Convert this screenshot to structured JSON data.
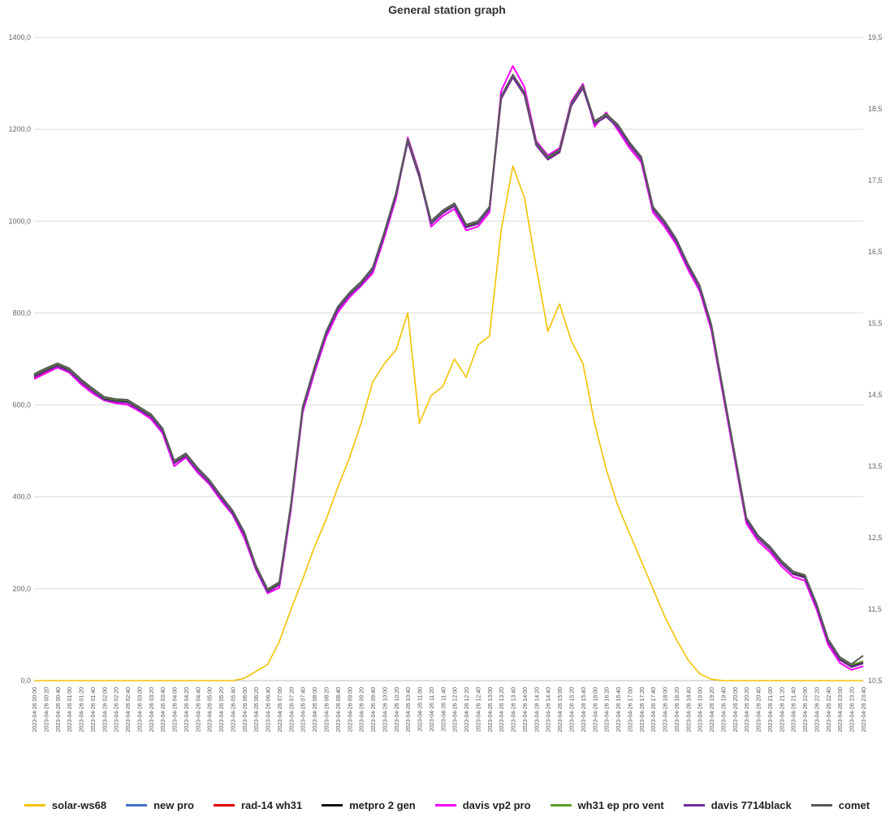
{
  "chart_data": {
    "type": "line",
    "title": "General station graph",
    "y_left": {
      "min": 0,
      "max": 1400,
      "ticks": [
        "0,0",
        "200,0",
        "400,0",
        "600,0",
        "800,0",
        "1000,0",
        "1200,0",
        "1400,0"
      ]
    },
    "y_right": {
      "min": 10.5,
      "max": 19.5,
      "ticks": [
        "10,5",
        "11,5",
        "12,5",
        "13,5",
        "14,5",
        "15,5",
        "16,5",
        "17,5",
        "18,5",
        "19,5"
      ]
    },
    "grid": true,
    "legend_position": "bottom",
    "x_labels": [
      "2023-04-26 00:00",
      "2023-04-26 00:20",
      "2023-04-26 00:40",
      "2023-04-26 01:00",
      "2023-04-26 01:20",
      "2023-04-26 01:40",
      "2023-04-26 02:00",
      "2023-04-26 02:20",
      "2023-04-26 02:40",
      "2023-04-26 03:00",
      "2023-04-26 03:20",
      "2023-04-26 03:40",
      "2023-04-26 04:00",
      "2023-04-26 04:20",
      "2023-04-26 04:40",
      "2023-04-26 05:00",
      "2023-04-26 05:20",
      "2023-04-26 05:40",
      "2023-04-26 06:00",
      "2023-04-26 06:20",
      "2023-04-26 06:40",
      "2023-04-26 07:00",
      "2023-04-26 07:20",
      "2023-04-26 07:40",
      "2023-04-26 08:00",
      "2023-04-26 08:20",
      "2023-04-26 08:40",
      "2023-04-26 09:00",
      "2023-04-26 09:20",
      "2023-04-26 09:40",
      "2023-04-26 10:00",
      "2023-04-26 10:20",
      "2023-04-26 10:40",
      "2023-04-26 11:00",
      "2023-04-26 11:20",
      "2023-04-26 11:40",
      "2023-04-26 12:00",
      "2023-04-26 12:20",
      "2023-04-26 12:40",
      "2023-04-26 13:00",
      "2023-04-26 13:20",
      "2023-04-26 13:40",
      "2023-04-26 14:00",
      "2023-04-26 14:20",
      "2023-04-26 14:40",
      "2023-04-26 15:00",
      "2023-04-26 15:20",
      "2023-04-26 15:40",
      "2023-04-26 16:00",
      "2023-04-26 16:20",
      "2023-04-26 16:40",
      "2023-04-26 17:00",
      "2023-04-26 17:20",
      "2023-04-26 17:40",
      "2023-04-26 18:00",
      "2023-04-26 18:20",
      "2023-04-26 18:40",
      "2023-04-26 19:00",
      "2023-04-26 19:20",
      "2023-04-26 19:40",
      "2023-04-26 20:00",
      "2023-04-26 20:20",
      "2023-04-26 20:40",
      "2023-04-26 21:00",
      "2023-04-26 21:20",
      "2023-04-26 21:40",
      "2023-04-26 22:00",
      "2023-04-26 22:20",
      "2023-04-26 22:40",
      "2023-04-26 23:00",
      "2023-04-26 23:20",
      "2023-04-26 23:40"
    ],
    "series": [
      {
        "name": "solar-ws68",
        "axis": "left",
        "color": "#f2c200",
        "values": [
          0,
          0,
          0,
          0,
          0,
          0,
          0,
          0,
          0,
          0,
          0,
          0,
          0,
          0,
          0,
          0,
          0,
          0,
          5,
          20,
          35,
          85,
          155,
          220,
          290,
          350,
          420,
          485,
          560,
          650,
          690,
          720,
          800,
          560,
          620,
          640,
          700,
          660,
          730,
          750,
          980,
          1120,
          1050,
          900,
          760,
          820,
          740,
          690,
          560,
          460,
          380,
          320,
          260,
          200,
          140,
          90,
          45,
          15,
          3,
          0,
          0,
          0,
          0,
          0,
          0,
          0,
          0,
          0,
          0,
          0,
          0,
          0
        ]
      },
      {
        "name": "new pro",
        "axis": "right",
        "color": "#4472c4",
        "values": [
          14.76,
          14.84,
          14.91,
          14.84,
          14.69,
          14.56,
          14.44,
          14.41,
          14.4,
          14.3,
          14.2,
          14.0,
          13.55,
          13.65,
          13.45,
          13.28,
          13.06,
          12.85,
          12.55,
          12.08,
          11.75,
          11.85,
          12.95,
          14.3,
          14.85,
          15.35,
          15.7,
          15.9,
          16.05,
          16.25,
          16.75,
          17.3,
          18.05,
          17.55,
          16.9,
          17.05,
          17.15,
          16.85,
          16.9,
          17.1,
          18.65,
          18.95,
          18.7,
          18.0,
          17.8,
          17.9,
          18.55,
          18.8,
          18.3,
          18.4,
          18.25,
          18.0,
          17.8,
          17.1,
          16.9,
          16.65,
          16.3,
          16.0,
          15.45,
          14.55,
          13.65,
          12.75,
          12.5,
          12.35,
          12.15,
          12.0,
          11.95,
          11.55,
          11.05,
          10.8,
          10.7,
          10.75
        ]
      },
      {
        "name": "rad-14 wh31",
        "axis": "right",
        "color": "#e00000",
        "values": [
          14.74,
          14.82,
          14.9,
          14.83,
          14.67,
          14.55,
          14.43,
          14.4,
          14.39,
          14.29,
          14.19,
          13.99,
          13.54,
          13.64,
          13.44,
          13.27,
          13.05,
          12.84,
          12.54,
          12.07,
          11.74,
          11.84,
          12.94,
          14.29,
          14.84,
          15.34,
          15.69,
          15.89,
          16.04,
          16.24,
          16.74,
          17.29,
          18.04,
          17.54,
          16.89,
          17.04,
          17.14,
          16.84,
          16.89,
          17.09,
          18.64,
          18.94,
          18.69,
          17.99,
          17.79,
          17.89,
          18.54,
          18.79,
          18.29,
          18.39,
          18.24,
          17.99,
          17.79,
          17.09,
          16.89,
          16.64,
          16.29,
          15.99,
          15.44,
          14.54,
          13.64,
          12.74,
          12.49,
          12.34,
          12.14,
          11.99,
          11.94,
          11.54,
          11.04,
          10.79,
          10.69,
          10.74
        ]
      },
      {
        "name": "metpro 2 gen",
        "axis": "right",
        "color": "#111111",
        "values": [
          14.77,
          14.85,
          14.92,
          14.85,
          14.7,
          14.57,
          14.45,
          14.42,
          14.41,
          14.31,
          14.21,
          14.01,
          13.56,
          13.66,
          13.46,
          13.29,
          13.07,
          12.86,
          12.56,
          12.09,
          11.76,
          11.86,
          12.96,
          14.31,
          14.86,
          15.36,
          15.71,
          15.91,
          16.06,
          16.26,
          16.76,
          17.31,
          18.06,
          17.56,
          16.91,
          17.06,
          17.16,
          16.86,
          16.91,
          17.11,
          18.66,
          18.96,
          18.71,
          18.01,
          17.81,
          17.91,
          18.56,
          18.81,
          18.31,
          18.41,
          18.26,
          18.01,
          17.81,
          17.11,
          16.91,
          16.66,
          16.31,
          16.01,
          15.46,
          14.56,
          13.66,
          12.76,
          12.51,
          12.36,
          12.16,
          12.01,
          11.96,
          11.56,
          11.06,
          10.81,
          10.71,
          10.76
        ]
      },
      {
        "name": "davis vp2 pro",
        "axis": "right",
        "color": "#ff00ff",
        "values": [
          14.72,
          14.8,
          14.88,
          14.81,
          14.65,
          14.52,
          14.42,
          14.38,
          14.36,
          14.27,
          14.16,
          13.96,
          13.5,
          13.62,
          13.41,
          13.25,
          13.02,
          12.82,
          12.5,
          12.05,
          11.72,
          11.8,
          12.9,
          14.25,
          14.8,
          15.3,
          15.65,
          15.86,
          16.02,
          16.2,
          16.7,
          17.25,
          18.1,
          17.6,
          16.85,
          17.0,
          17.1,
          16.8,
          16.85,
          17.05,
          18.75,
          19.1,
          18.8,
          18.05,
          17.85,
          17.95,
          18.6,
          18.85,
          18.25,
          18.45,
          18.2,
          17.95,
          17.75,
          17.05,
          16.85,
          16.6,
          16.25,
          15.95,
          15.4,
          14.5,
          13.6,
          12.7,
          12.45,
          12.3,
          12.1,
          11.95,
          11.9,
          11.5,
          11.0,
          10.75,
          10.65,
          10.7
        ]
      },
      {
        "name": "wh31 ep pro vent",
        "axis": "right",
        "color": "#5aa02c",
        "values": [
          14.78,
          14.86,
          14.93,
          14.86,
          14.71,
          14.58,
          14.46,
          14.43,
          14.42,
          14.32,
          14.22,
          14.02,
          13.57,
          13.67,
          13.47,
          13.3,
          13.08,
          12.87,
          12.57,
          12.1,
          11.77,
          11.87,
          12.97,
          14.32,
          14.87,
          15.37,
          15.72,
          15.92,
          16.07,
          16.27,
          16.77,
          17.32,
          18.07,
          17.57,
          16.92,
          17.07,
          17.17,
          16.87,
          16.92,
          17.12,
          18.67,
          18.97,
          18.72,
          18.02,
          17.82,
          17.92,
          18.57,
          18.82,
          18.32,
          18.42,
          18.27,
          18.02,
          17.82,
          17.12,
          16.92,
          16.67,
          16.32,
          16.02,
          15.47,
          14.57,
          13.67,
          12.77,
          12.52,
          12.37,
          12.17,
          12.02,
          11.97,
          11.57,
          11.07,
          10.82,
          10.72,
          10.77
        ]
      },
      {
        "name": "davis 7714black",
        "axis": "right",
        "color": "#7030a0",
        "values": [
          14.75,
          14.83,
          14.9,
          14.83,
          14.68,
          14.55,
          14.43,
          14.4,
          14.39,
          14.29,
          14.19,
          13.99,
          13.54,
          13.64,
          13.44,
          13.27,
          13.05,
          12.84,
          12.54,
          12.07,
          11.74,
          11.84,
          12.94,
          14.29,
          14.84,
          15.34,
          15.69,
          15.89,
          16.04,
          16.24,
          16.74,
          17.29,
          18.04,
          17.54,
          16.89,
          17.04,
          17.14,
          16.84,
          16.89,
          17.09,
          18.64,
          18.94,
          18.69,
          17.99,
          17.79,
          17.89,
          18.54,
          18.79,
          18.29,
          18.39,
          18.24,
          17.99,
          17.79,
          17.09,
          16.89,
          16.64,
          16.29,
          15.99,
          15.44,
          14.54,
          13.64,
          12.74,
          12.49,
          12.34,
          12.14,
          11.99,
          11.94,
          11.54,
          11.04,
          10.79,
          10.69,
          10.74
        ]
      },
      {
        "name": "comet",
        "axis": "right",
        "color": "#595959",
        "values": [
          14.79,
          14.87,
          14.94,
          14.87,
          14.72,
          14.59,
          14.47,
          14.44,
          14.43,
          14.33,
          14.23,
          14.03,
          13.58,
          13.68,
          13.48,
          13.31,
          13.09,
          12.88,
          12.58,
          12.11,
          11.78,
          11.88,
          12.98,
          14.33,
          14.88,
          15.38,
          15.73,
          15.93,
          16.08,
          16.28,
          16.78,
          17.33,
          18.08,
          17.58,
          16.93,
          17.08,
          17.18,
          16.88,
          16.93,
          17.13,
          18.68,
          18.98,
          18.73,
          18.03,
          17.83,
          17.93,
          18.58,
          18.83,
          18.33,
          18.43,
          18.28,
          18.03,
          17.83,
          17.13,
          16.93,
          16.68,
          16.33,
          16.03,
          15.48,
          14.58,
          13.68,
          12.78,
          12.53,
          12.38,
          12.18,
          12.03,
          11.98,
          11.58,
          11.08,
          10.83,
          10.73,
          10.85
        ]
      }
    ]
  }
}
